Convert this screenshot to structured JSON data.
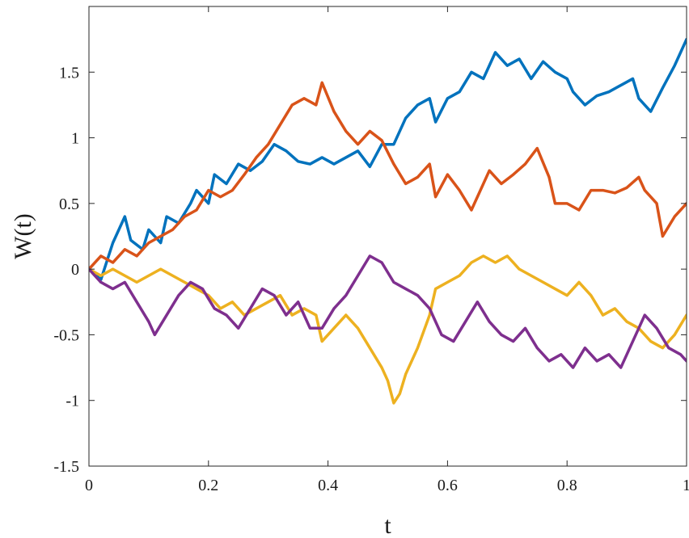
{
  "chart_data": {
    "type": "line",
    "title": "",
    "xlabel": "t",
    "ylabel": "W(t)",
    "xlim": [
      0,
      1
    ],
    "ylim": [
      -1.5,
      2
    ],
    "xticks": [
      0,
      0.2,
      0.4,
      0.6,
      0.8,
      1
    ],
    "xtick_labels": [
      "0",
      "0.2",
      "0.4",
      "0.6",
      "0.8",
      "1"
    ],
    "yticks": [
      -1.5,
      -1,
      -0.5,
      0,
      0.5,
      1,
      1.5
    ],
    "ytick_labels": [
      "-1.5",
      "-1",
      "-0.5",
      "0",
      "0.5",
      "1",
      "1.5"
    ],
    "grid": false,
    "line_width": 3.5,
    "series": [
      {
        "color": "#0072BD",
        "points": [
          [
            0,
            0
          ],
          [
            0.02,
            -0.08
          ],
          [
            0.04,
            0.2
          ],
          [
            0.06,
            0.4
          ],
          [
            0.07,
            0.22
          ],
          [
            0.09,
            0.15
          ],
          [
            0.1,
            0.3
          ],
          [
            0.12,
            0.2
          ],
          [
            0.13,
            0.4
          ],
          [
            0.15,
            0.35
          ],
          [
            0.17,
            0.5
          ],
          [
            0.18,
            0.6
          ],
          [
            0.2,
            0.5
          ],
          [
            0.21,
            0.72
          ],
          [
            0.23,
            0.65
          ],
          [
            0.25,
            0.8
          ],
          [
            0.27,
            0.75
          ],
          [
            0.29,
            0.82
          ],
          [
            0.31,
            0.95
          ],
          [
            0.33,
            0.9
          ],
          [
            0.35,
            0.82
          ],
          [
            0.37,
            0.8
          ],
          [
            0.39,
            0.85
          ],
          [
            0.41,
            0.8
          ],
          [
            0.43,
            0.85
          ],
          [
            0.45,
            0.9
          ],
          [
            0.47,
            0.78
          ],
          [
            0.49,
            0.95
          ],
          [
            0.51,
            0.95
          ],
          [
            0.53,
            1.15
          ],
          [
            0.55,
            1.25
          ],
          [
            0.57,
            1.3
          ],
          [
            0.58,
            1.12
          ],
          [
            0.6,
            1.3
          ],
          [
            0.62,
            1.35
          ],
          [
            0.64,
            1.5
          ],
          [
            0.66,
            1.45
          ],
          [
            0.68,
            1.65
          ],
          [
            0.7,
            1.55
          ],
          [
            0.72,
            1.6
          ],
          [
            0.74,
            1.45
          ],
          [
            0.76,
            1.58
          ],
          [
            0.78,
            1.5
          ],
          [
            0.8,
            1.45
          ],
          [
            0.81,
            1.35
          ],
          [
            0.83,
            1.25
          ],
          [
            0.85,
            1.32
          ],
          [
            0.87,
            1.35
          ],
          [
            0.89,
            1.4
          ],
          [
            0.91,
            1.45
          ],
          [
            0.92,
            1.3
          ],
          [
            0.94,
            1.2
          ],
          [
            0.96,
            1.38
          ],
          [
            0.98,
            1.55
          ],
          [
            1,
            1.75
          ]
        ]
      },
      {
        "color": "#D95319",
        "points": [
          [
            0,
            0
          ],
          [
            0.02,
            0.1
          ],
          [
            0.04,
            0.05
          ],
          [
            0.06,
            0.15
          ],
          [
            0.08,
            0.1
          ],
          [
            0.1,
            0.2
          ],
          [
            0.12,
            0.25
          ],
          [
            0.14,
            0.3
          ],
          [
            0.16,
            0.4
          ],
          [
            0.18,
            0.45
          ],
          [
            0.2,
            0.6
          ],
          [
            0.22,
            0.55
          ],
          [
            0.24,
            0.6
          ],
          [
            0.26,
            0.72
          ],
          [
            0.28,
            0.85
          ],
          [
            0.3,
            0.95
          ],
          [
            0.32,
            1.1
          ],
          [
            0.34,
            1.25
          ],
          [
            0.36,
            1.3
          ],
          [
            0.38,
            1.25
          ],
          [
            0.39,
            1.42
          ],
          [
            0.41,
            1.2
          ],
          [
            0.43,
            1.05
          ],
          [
            0.45,
            0.95
          ],
          [
            0.47,
            1.05
          ],
          [
            0.49,
            0.98
          ],
          [
            0.51,
            0.8
          ],
          [
            0.53,
            0.65
          ],
          [
            0.55,
            0.7
          ],
          [
            0.57,
            0.8
          ],
          [
            0.58,
            0.55
          ],
          [
            0.6,
            0.72
          ],
          [
            0.62,
            0.6
          ],
          [
            0.64,
            0.45
          ],
          [
            0.65,
            0.55
          ],
          [
            0.67,
            0.75
          ],
          [
            0.69,
            0.65
          ],
          [
            0.71,
            0.72
          ],
          [
            0.73,
            0.8
          ],
          [
            0.75,
            0.92
          ],
          [
            0.77,
            0.7
          ],
          [
            0.78,
            0.5
          ],
          [
            0.8,
            0.5
          ],
          [
            0.82,
            0.45
          ],
          [
            0.84,
            0.6
          ],
          [
            0.86,
            0.6
          ],
          [
            0.88,
            0.58
          ],
          [
            0.9,
            0.62
          ],
          [
            0.92,
            0.7
          ],
          [
            0.93,
            0.6
          ],
          [
            0.95,
            0.5
          ],
          [
            0.96,
            0.25
          ],
          [
            0.98,
            0.4
          ],
          [
            1,
            0.5
          ]
        ]
      },
      {
        "color": "#EDB120",
        "points": [
          [
            0,
            0
          ],
          [
            0.02,
            -0.05
          ],
          [
            0.04,
            0.0
          ],
          [
            0.06,
            -0.05
          ],
          [
            0.08,
            -0.1
          ],
          [
            0.1,
            -0.05
          ],
          [
            0.12,
            0.0
          ],
          [
            0.14,
            -0.05
          ],
          [
            0.16,
            -0.1
          ],
          [
            0.18,
            -0.15
          ],
          [
            0.2,
            -0.2
          ],
          [
            0.22,
            -0.3
          ],
          [
            0.24,
            -0.25
          ],
          [
            0.26,
            -0.35
          ],
          [
            0.28,
            -0.3
          ],
          [
            0.3,
            -0.25
          ],
          [
            0.32,
            -0.2
          ],
          [
            0.34,
            -0.35
          ],
          [
            0.36,
            -0.3
          ],
          [
            0.38,
            -0.35
          ],
          [
            0.39,
            -0.55
          ],
          [
            0.41,
            -0.45
          ],
          [
            0.43,
            -0.35
          ],
          [
            0.45,
            -0.45
          ],
          [
            0.47,
            -0.6
          ],
          [
            0.49,
            -0.75
          ],
          [
            0.5,
            -0.85
          ],
          [
            0.51,
            -1.02
          ],
          [
            0.52,
            -0.95
          ],
          [
            0.53,
            -0.8
          ],
          [
            0.55,
            -0.6
          ],
          [
            0.57,
            -0.35
          ],
          [
            0.58,
            -0.15
          ],
          [
            0.6,
            -0.1
          ],
          [
            0.62,
            -0.05
          ],
          [
            0.64,
            0.05
          ],
          [
            0.66,
            0.1
          ],
          [
            0.68,
            0.05
          ],
          [
            0.7,
            0.1
          ],
          [
            0.72,
            0.0
          ],
          [
            0.74,
            -0.05
          ],
          [
            0.76,
            -0.1
          ],
          [
            0.78,
            -0.15
          ],
          [
            0.8,
            -0.2
          ],
          [
            0.82,
            -0.1
          ],
          [
            0.84,
            -0.2
          ],
          [
            0.86,
            -0.35
          ],
          [
            0.88,
            -0.3
          ],
          [
            0.9,
            -0.4
          ],
          [
            0.92,
            -0.45
          ],
          [
            0.94,
            -0.55
          ],
          [
            0.96,
            -0.6
          ],
          [
            0.98,
            -0.5
          ],
          [
            1,
            -0.35
          ]
        ]
      },
      {
        "color": "#7E2F8E",
        "points": [
          [
            0,
            0
          ],
          [
            0.02,
            -0.1
          ],
          [
            0.04,
            -0.15
          ],
          [
            0.06,
            -0.1
          ],
          [
            0.08,
            -0.25
          ],
          [
            0.1,
            -0.4
          ],
          [
            0.11,
            -0.5
          ],
          [
            0.13,
            -0.35
          ],
          [
            0.15,
            -0.2
          ],
          [
            0.17,
            -0.1
          ],
          [
            0.19,
            -0.15
          ],
          [
            0.21,
            -0.3
          ],
          [
            0.23,
            -0.35
          ],
          [
            0.25,
            -0.45
          ],
          [
            0.27,
            -0.3
          ],
          [
            0.29,
            -0.15
          ],
          [
            0.31,
            -0.2
          ],
          [
            0.33,
            -0.35
          ],
          [
            0.35,
            -0.25
          ],
          [
            0.37,
            -0.45
          ],
          [
            0.39,
            -0.45
          ],
          [
            0.41,
            -0.3
          ],
          [
            0.43,
            -0.2
          ],
          [
            0.45,
            -0.05
          ],
          [
            0.47,
            0.1
          ],
          [
            0.49,
            0.05
          ],
          [
            0.51,
            -0.1
          ],
          [
            0.53,
            -0.15
          ],
          [
            0.55,
            -0.2
          ],
          [
            0.57,
            -0.3
          ],
          [
            0.59,
            -0.5
          ],
          [
            0.61,
            -0.55
          ],
          [
            0.63,
            -0.4
          ],
          [
            0.65,
            -0.25
          ],
          [
            0.67,
            -0.4
          ],
          [
            0.69,
            -0.5
          ],
          [
            0.71,
            -0.55
          ],
          [
            0.73,
            -0.45
          ],
          [
            0.75,
            -0.6
          ],
          [
            0.77,
            -0.7
          ],
          [
            0.79,
            -0.65
          ],
          [
            0.81,
            -0.75
          ],
          [
            0.83,
            -0.6
          ],
          [
            0.85,
            -0.7
          ],
          [
            0.87,
            -0.65
          ],
          [
            0.89,
            -0.75
          ],
          [
            0.91,
            -0.55
          ],
          [
            0.93,
            -0.35
          ],
          [
            0.95,
            -0.45
          ],
          [
            0.97,
            -0.6
          ],
          [
            0.99,
            -0.65
          ],
          [
            1,
            -0.7
          ]
        ]
      }
    ]
  }
}
